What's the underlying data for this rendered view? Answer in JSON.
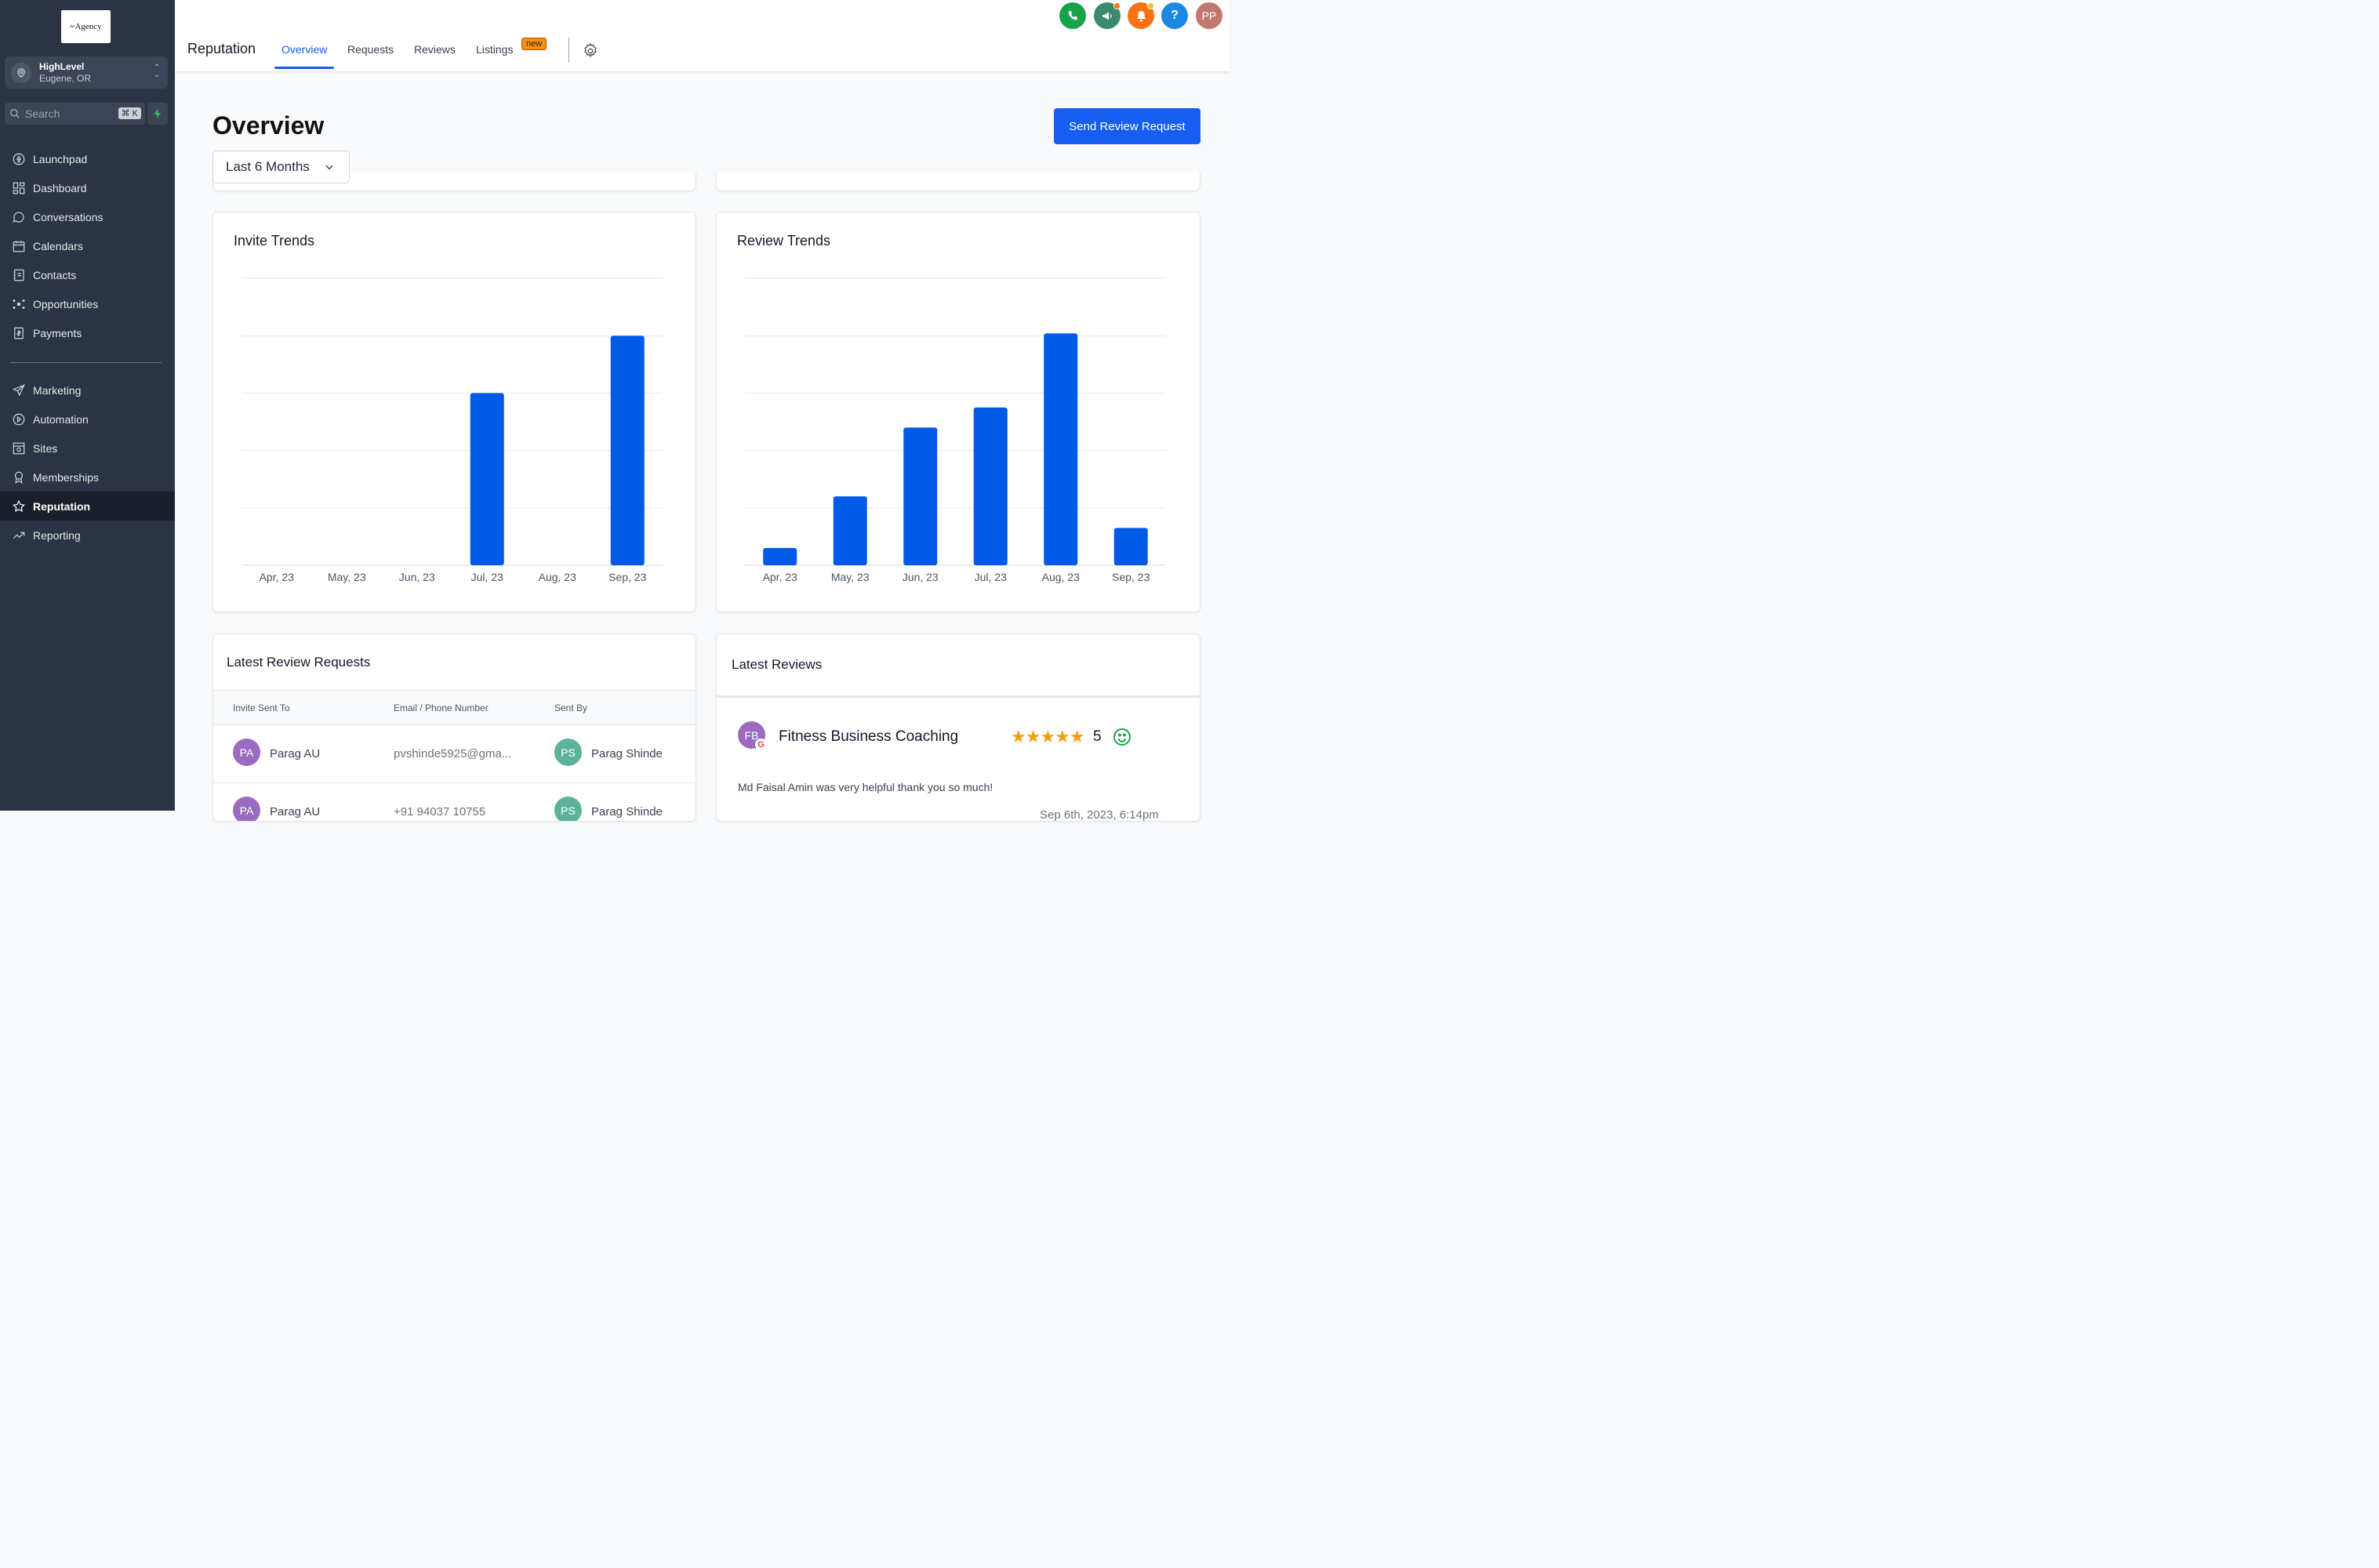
{
  "sidebar": {
    "logo_text": "Agency",
    "logo_sup": "the",
    "location": {
      "name": "HighLevel",
      "city": "Eugene, OR"
    },
    "search": {
      "placeholder": "Search",
      "shortcut": "⌘ K"
    },
    "items": [
      {
        "label": "Launchpad",
        "icon": "rocket-icon"
      },
      {
        "label": "Dashboard",
        "icon": "dashboard-icon"
      },
      {
        "label": "Conversations",
        "icon": "chat-icon"
      },
      {
        "label": "Calendars",
        "icon": "calendar-icon"
      },
      {
        "label": "Contacts",
        "icon": "contacts-icon"
      },
      {
        "label": "Opportunities",
        "icon": "opportunities-icon"
      },
      {
        "label": "Payments",
        "icon": "payments-icon"
      }
    ],
    "items2": [
      {
        "label": "Marketing",
        "icon": "send-icon"
      },
      {
        "label": "Automation",
        "icon": "automation-icon"
      },
      {
        "label": "Sites",
        "icon": "sites-icon"
      },
      {
        "label": "Memberships",
        "icon": "badge-icon"
      },
      {
        "label": "Reputation",
        "icon": "star-icon",
        "active": true
      },
      {
        "label": "Reporting",
        "icon": "trend-icon"
      }
    ]
  },
  "header": {
    "title": "Reputation",
    "tabs": [
      "Overview",
      "Requests",
      "Reviews",
      "Listings"
    ],
    "new_badge": "new",
    "avatar_initials": "PP"
  },
  "main": {
    "heading": "Overview",
    "send_button": "Send Review Request",
    "period": "Last 6 Months"
  },
  "chart_data": [
    {
      "type": "bar",
      "title": "Invite Trends",
      "categories": [
        "Apr, 23",
        "May, 23",
        "Jun, 23",
        "Jul, 23",
        "Aug, 23",
        "Sep, 23"
      ],
      "values": [
        0,
        0,
        0,
        3,
        0,
        4
      ],
      "ylim": [
        0,
        5
      ],
      "grid": true,
      "color": "#005ae8"
    },
    {
      "type": "bar",
      "title": "Review Trends",
      "categories": [
        "Apr, 23",
        "May, 23",
        "Jun, 23",
        "Jul, 23",
        "Aug, 23",
        "Sep, 23"
      ],
      "values": [
        0.3,
        1.2,
        2.4,
        2.75,
        4.04,
        0.65
      ],
      "ylim": [
        0,
        5
      ],
      "grid": true,
      "color": "#005ae8"
    }
  ],
  "requests": {
    "title": "Latest Review Requests",
    "columns": [
      "Invite Sent To",
      "Email / Phone Number",
      "Sent By"
    ],
    "rows": [
      {
        "initials": "PA",
        "name": "Parag AU",
        "contact": "pvshinde5925@gma...",
        "sender_initials": "PS",
        "sender": "Parag Shinde"
      },
      {
        "initials": "PA",
        "name": "Parag AU",
        "contact": "+91 94037 10755",
        "sender_initials": "PS",
        "sender": "Parag Shinde"
      }
    ]
  },
  "reviews": {
    "title": "Latest Reviews",
    "items": [
      {
        "initials": "FB",
        "name": "Fitness Business Coaching",
        "rating": "5",
        "text": "Md Faisal Amin was very helpful thank you so much!",
        "date": "Sep 6th, 2023, 6:14pm"
      }
    ]
  },
  "colors": {
    "accent": "#155eef",
    "bar": "#005ae8",
    "sidebar": "#2a3444",
    "star": "#f59e0b"
  }
}
